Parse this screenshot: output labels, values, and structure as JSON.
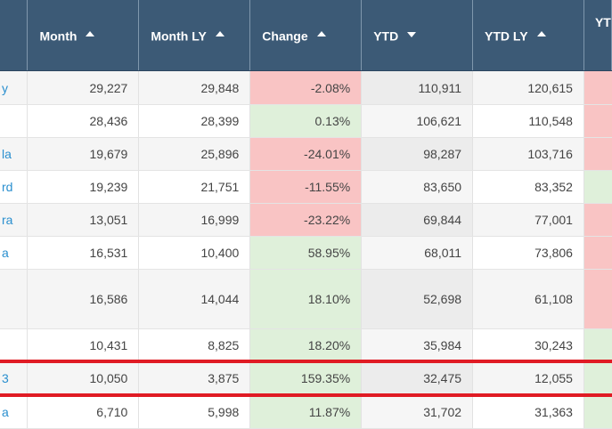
{
  "table": {
    "columns": [
      {
        "key": "name",
        "label": "",
        "sort": "none"
      },
      {
        "key": "month",
        "label": "Month",
        "sort": "up"
      },
      {
        "key": "month_ly",
        "label": "Month LY",
        "sort": "up"
      },
      {
        "key": "change",
        "label": "Change",
        "sort": "up"
      },
      {
        "key": "ytd",
        "label": "YTD",
        "sort": "down"
      },
      {
        "key": "ytd_ly",
        "label": "YTD LY",
        "sort": "up"
      },
      {
        "key": "ytd_change",
        "label": "YT",
        "sort": "none"
      }
    ],
    "rows": [
      {
        "name": "y",
        "month": "29,227",
        "month_ly": "29,848",
        "change": "-2.08%",
        "change_sign": "neg",
        "ytd": "110,911",
        "ytd_ly": "120,615",
        "ytd_change_sign": "neg"
      },
      {
        "name": "",
        "month": "28,436",
        "month_ly": "28,399",
        "change": "0.13%",
        "change_sign": "pos",
        "ytd": "106,621",
        "ytd_ly": "110,548",
        "ytd_change_sign": "neg"
      },
      {
        "name": "la",
        "month": "19,679",
        "month_ly": "25,896",
        "change": "-24.01%",
        "change_sign": "neg",
        "ytd": "98,287",
        "ytd_ly": "103,716",
        "ytd_change_sign": "neg"
      },
      {
        "name": "rd",
        "month": "19,239",
        "month_ly": "21,751",
        "change": "-11.55%",
        "change_sign": "neg",
        "ytd": "83,650",
        "ytd_ly": "83,352",
        "ytd_change_sign": "pos"
      },
      {
        "name": "ra",
        "month": "13,051",
        "month_ly": "16,999",
        "change": "-23.22%",
        "change_sign": "neg",
        "ytd": "69,844",
        "ytd_ly": "77,001",
        "ytd_change_sign": "neg"
      },
      {
        "name": "a",
        "month": "16,531",
        "month_ly": "10,400",
        "change": "58.95%",
        "change_sign": "pos",
        "ytd": "68,011",
        "ytd_ly": "73,806",
        "ytd_change_sign": "neg"
      },
      {
        "name": "",
        "month": "16,586",
        "month_ly": "14,044",
        "change": "18.10%",
        "change_sign": "pos",
        "ytd": "52,698",
        "ytd_ly": "61,108",
        "ytd_change_sign": "neg",
        "tall": true
      },
      {
        "name": "",
        "month": "10,431",
        "month_ly": "8,825",
        "change": "18.20%",
        "change_sign": "pos",
        "ytd": "35,984",
        "ytd_ly": "30,243",
        "ytd_change_sign": "pos"
      },
      {
        "name": "3",
        "month": "10,050",
        "month_ly": "3,875",
        "change": "159.35%",
        "change_sign": "pos",
        "ytd": "32,475",
        "ytd_ly": "12,055",
        "ytd_change_sign": "pos",
        "highlighted": true
      },
      {
        "name": "a",
        "month": "6,710",
        "month_ly": "5,998",
        "change": "11.87%",
        "change_sign": "pos",
        "ytd": "31,702",
        "ytd_ly": "31,363",
        "ytd_change_sign": "pos"
      }
    ]
  },
  "colors": {
    "header_bg": "#3c5a76",
    "negative_bg": "#f9c4c4",
    "positive_bg": "#dff0da",
    "link_text": "#2a8fcf",
    "highlight_outline": "#e01b24"
  },
  "icons": {
    "sort_ascending": "triangle-up-icon",
    "sort_descending": "triangle-down-icon"
  }
}
